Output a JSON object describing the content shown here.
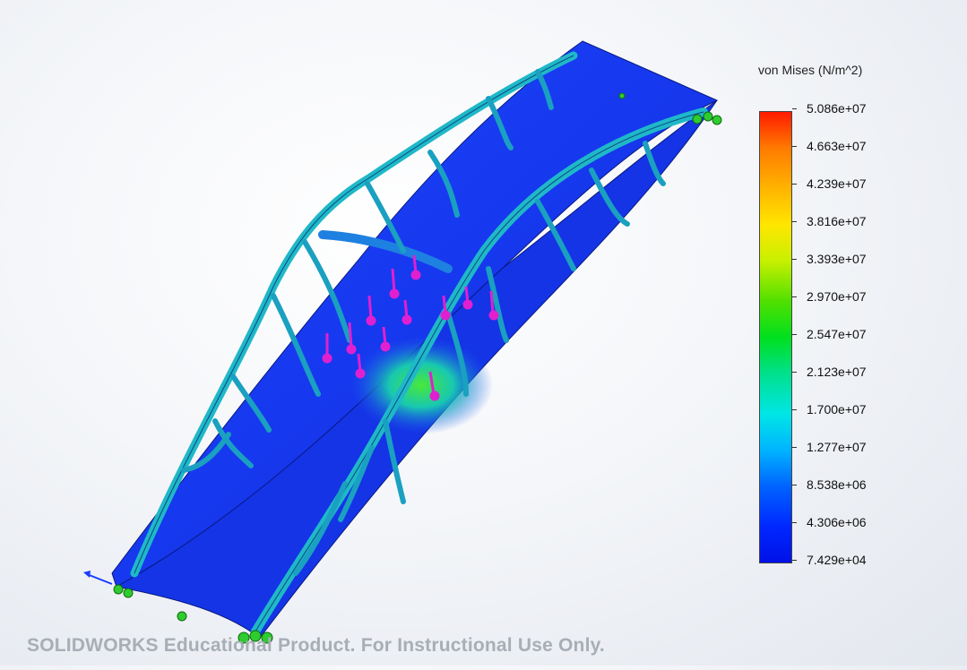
{
  "legend": {
    "title": "von Mises (N/m^2)",
    "ticks": [
      "5.086e+07",
      "4.663e+07",
      "4.239e+07",
      "3.816e+07",
      "3.393e+07",
      "2.970e+07",
      "2.547e+07",
      "2.123e+07",
      "1.700e+07",
      "1.277e+07",
      "8.538e+06",
      "4.306e+06",
      "7.429e+04"
    ]
  },
  "colors": {
    "deck": "#1a3cf0",
    "truss": "#1fb8c8",
    "load_arrows": "#e020d0",
    "fixtures": "#2ecc2e",
    "stress_hotspot": "#3ee03e"
  },
  "watermark": "SOLIDWORKS Educational Product. For Instructional Use Only."
}
